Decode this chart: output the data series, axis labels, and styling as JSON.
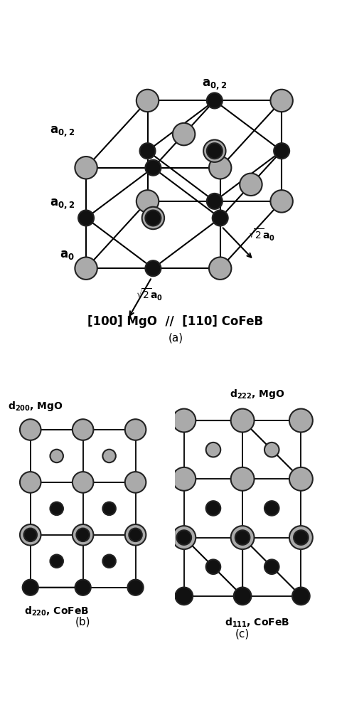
{
  "fig_width": 4.74,
  "fig_height": 9.98,
  "bg_color": "#ffffff",
  "gray_color": "#aaaaaa",
  "black_color": "#111111",
  "outline_color": "#222222",
  "panel_a_title": "[100] MgO  //  [110] CoFeB",
  "panel_a_sub": "(a)",
  "panel_b_top": "d$_{200}$, MgO",
  "panel_b_bot": "d$_{220}$, CoFeB",
  "panel_b_sub": "(b)",
  "panel_c_top": "d$_{222}$, MgO",
  "panel_c_bot": "d$_{111}$, CoFeB",
  "panel_c_sub": "(c)"
}
